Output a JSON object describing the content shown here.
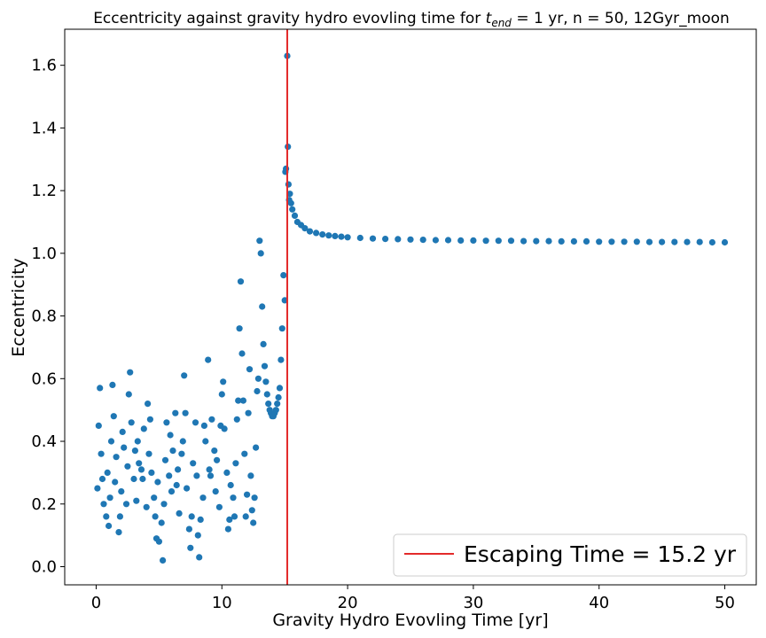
{
  "chart_data": {
    "type": "scatter",
    "title_prefix": "Eccentricity against gravity hydro evovling time for ",
    "title_math_base": "t",
    "title_math_sub": "end",
    "title_suffix": " = 1 yr, n = 50, 12Gyr_moon",
    "xlabel": "Gravity Hydro Evovling Time [yr]",
    "ylabel": "Eccentricity",
    "xlim": [
      -2.5,
      52.5
    ],
    "ylim": [
      -0.058,
      1.715
    ],
    "xticks": [
      0,
      10,
      20,
      30,
      40,
      50
    ],
    "yticks": [
      0.0,
      0.2,
      0.4,
      0.6,
      0.8,
      1.0,
      1.2,
      1.4,
      1.6
    ],
    "ytick_labels": [
      "0.0",
      "0.2",
      "0.4",
      "0.6",
      "0.8",
      "1.0",
      "1.2",
      "1.4",
      "1.6"
    ],
    "grid": false,
    "legend_placement": "bottom-right",
    "point_color": "#1f77b4",
    "vline_color": "#e32a2a",
    "vline": {
      "x": 15.2,
      "label": "Escaping Time = 15.2 yr"
    },
    "series": [
      {
        "values": [
          [
            0.1,
            0.25
          ],
          [
            0.2,
            0.45
          ],
          [
            0.3,
            0.57
          ],
          [
            0.4,
            0.36
          ],
          [
            0.5,
            0.28
          ],
          [
            0.6,
            0.2
          ],
          [
            0.8,
            0.16
          ],
          [
            0.9,
            0.3
          ],
          [
            1.0,
            0.13
          ],
          [
            1.1,
            0.22
          ],
          [
            1.2,
            0.4
          ],
          [
            1.3,
            0.58
          ],
          [
            1.4,
            0.48
          ],
          [
            1.5,
            0.27
          ],
          [
            1.6,
            0.35
          ],
          [
            1.8,
            0.11
          ],
          [
            1.9,
            0.16
          ],
          [
            2.0,
            0.24
          ],
          [
            2.1,
            0.43
          ],
          [
            2.2,
            0.38
          ],
          [
            2.4,
            0.2
          ],
          [
            2.5,
            0.32
          ],
          [
            2.6,
            0.55
          ],
          [
            2.7,
            0.62
          ],
          [
            2.8,
            0.46
          ],
          [
            3.0,
            0.28
          ],
          [
            3.1,
            0.37
          ],
          [
            3.2,
            0.21
          ],
          [
            3.3,
            0.4
          ],
          [
            3.4,
            0.33
          ],
          [
            3.6,
            0.31
          ],
          [
            3.7,
            0.28
          ],
          [
            3.8,
            0.44
          ],
          [
            4.0,
            0.19
          ],
          [
            4.1,
            0.52
          ],
          [
            4.2,
            0.36
          ],
          [
            4.3,
            0.47
          ],
          [
            4.4,
            0.3
          ],
          [
            4.6,
            0.22
          ],
          [
            4.7,
            0.16
          ],
          [
            4.8,
            0.09
          ],
          [
            4.9,
            0.27
          ],
          [
            5.0,
            0.08
          ],
          [
            5.2,
            0.14
          ],
          [
            5.3,
            0.02
          ],
          [
            5.4,
            0.2
          ],
          [
            5.5,
            0.34
          ],
          [
            5.6,
            0.46
          ],
          [
            5.8,
            0.29
          ],
          [
            5.9,
            0.42
          ],
          [
            6.0,
            0.24
          ],
          [
            6.1,
            0.37
          ],
          [
            6.3,
            0.49
          ],
          [
            6.4,
            0.26
          ],
          [
            6.5,
            0.31
          ],
          [
            6.6,
            0.17
          ],
          [
            6.8,
            0.36
          ],
          [
            6.9,
            0.4
          ],
          [
            7.0,
            0.61
          ],
          [
            7.1,
            0.49
          ],
          [
            7.2,
            0.25
          ],
          [
            7.4,
            0.12
          ],
          [
            7.5,
            0.06
          ],
          [
            7.6,
            0.16
          ],
          [
            7.7,
            0.33
          ],
          [
            7.9,
            0.46
          ],
          [
            8.0,
            0.29
          ],
          [
            8.1,
            0.1
          ],
          [
            8.2,
            0.03
          ],
          [
            8.3,
            0.15
          ],
          [
            8.5,
            0.22
          ],
          [
            8.6,
            0.45
          ],
          [
            8.7,
            0.4
          ],
          [
            8.9,
            0.66
          ],
          [
            9.0,
            0.31
          ],
          [
            9.1,
            0.29
          ],
          [
            9.2,
            0.47
          ],
          [
            9.4,
            0.37
          ],
          [
            9.5,
            0.24
          ],
          [
            9.6,
            0.34
          ],
          [
            9.8,
            0.19
          ],
          [
            9.9,
            0.45
          ],
          [
            10.0,
            0.55
          ],
          [
            10.1,
            0.59
          ],
          [
            10.2,
            0.44
          ],
          [
            10.4,
            0.3
          ],
          [
            10.5,
            0.12
          ],
          [
            10.6,
            0.15
          ],
          [
            10.7,
            0.26
          ],
          [
            10.9,
            0.22
          ],
          [
            11.0,
            0.16
          ],
          [
            11.1,
            0.33
          ],
          [
            11.2,
            0.47
          ],
          [
            11.3,
            0.53
          ],
          [
            11.4,
            0.76
          ],
          [
            11.5,
            0.91
          ],
          [
            11.6,
            0.68
          ],
          [
            11.7,
            0.53
          ],
          [
            11.8,
            0.36
          ],
          [
            11.9,
            0.16
          ],
          [
            12.0,
            0.23
          ],
          [
            12.1,
            0.49
          ],
          [
            12.2,
            0.63
          ],
          [
            12.3,
            0.29
          ],
          [
            12.4,
            0.18
          ],
          [
            12.5,
            0.14
          ],
          [
            12.6,
            0.22
          ],
          [
            12.7,
            0.38
          ],
          [
            12.8,
            0.56
          ],
          [
            12.9,
            0.6
          ],
          [
            13.0,
            1.04
          ],
          [
            13.1,
            1.0
          ],
          [
            13.2,
            0.83
          ],
          [
            13.3,
            0.71
          ],
          [
            13.4,
            0.64
          ],
          [
            13.5,
            0.59
          ],
          [
            13.6,
            0.55
          ],
          [
            13.7,
            0.52
          ],
          [
            13.8,
            0.5
          ],
          [
            13.9,
            0.49
          ],
          [
            14.0,
            0.48
          ],
          [
            14.1,
            0.48
          ],
          [
            14.2,
            0.49
          ],
          [
            14.3,
            0.5
          ],
          [
            14.4,
            0.52
          ],
          [
            14.5,
            0.54
          ],
          [
            14.6,
            0.57
          ],
          [
            14.7,
            0.66
          ],
          [
            14.8,
            0.76
          ],
          [
            14.9,
            0.93
          ],
          [
            15.0,
            0.85
          ],
          [
            15.05,
            1.26
          ],
          [
            15.1,
            1.27
          ],
          [
            15.2,
            1.63
          ],
          [
            15.25,
            1.34
          ],
          [
            15.3,
            1.22
          ],
          [
            15.35,
            1.17
          ],
          [
            15.4,
            1.19
          ],
          [
            15.5,
            1.16
          ],
          [
            15.6,
            1.14
          ],
          [
            15.8,
            1.12
          ],
          [
            16.0,
            1.1
          ],
          [
            16.3,
            1.09
          ],
          [
            16.6,
            1.08
          ],
          [
            17.0,
            1.07
          ],
          [
            17.5,
            1.065
          ],
          [
            18.0,
            1.06
          ],
          [
            18.5,
            1.057
          ],
          [
            19.0,
            1.055
          ],
          [
            19.5,
            1.053
          ],
          [
            20.0,
            1.051
          ],
          [
            21.0,
            1.049
          ],
          [
            22.0,
            1.047
          ],
          [
            23.0,
            1.046
          ],
          [
            24.0,
            1.045
          ],
          [
            25.0,
            1.044
          ],
          [
            26.0,
            1.043
          ],
          [
            27.0,
            1.042
          ],
          [
            28.0,
            1.042
          ],
          [
            29.0,
            1.041
          ],
          [
            30.0,
            1.041
          ],
          [
            31.0,
            1.04
          ],
          [
            32.0,
            1.04
          ],
          [
            33.0,
            1.04
          ],
          [
            34.0,
            1.039
          ],
          [
            35.0,
            1.039
          ],
          [
            36.0,
            1.039
          ],
          [
            37.0,
            1.038
          ],
          [
            38.0,
            1.038
          ],
          [
            39.0,
            1.038
          ],
          [
            40.0,
            1.037
          ],
          [
            41.0,
            1.037
          ],
          [
            42.0,
            1.037
          ],
          [
            43.0,
            1.037
          ],
          [
            44.0,
            1.036
          ],
          [
            45.0,
            1.036
          ],
          [
            46.0,
            1.036
          ],
          [
            47.0,
            1.036
          ],
          [
            48.0,
            1.036
          ],
          [
            49.0,
            1.035
          ],
          [
            50.0,
            1.035
          ]
        ]
      }
    ]
  }
}
